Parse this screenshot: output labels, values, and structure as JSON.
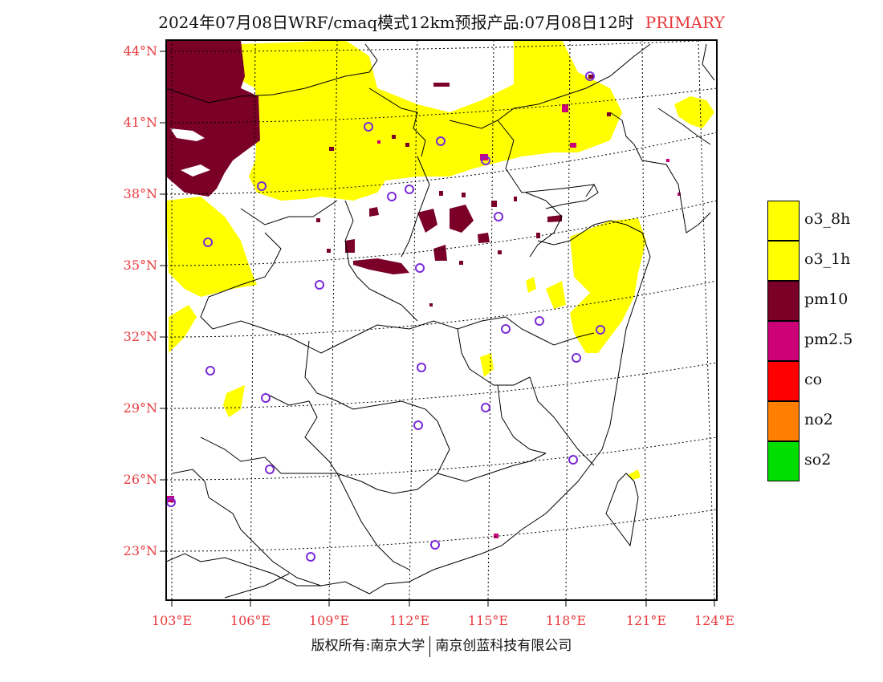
{
  "title": "2024年07月08日WRF/cmaq模式12km预报产品:07月08日12时",
  "title_tag": "PRIMARY",
  "lat_labels": [
    "44°N",
    "41°N",
    "38°N",
    "35°N",
    "32°N",
    "29°N",
    "26°N",
    "23°N"
  ],
  "lon_labels": [
    "103°E",
    "106°E",
    "109°E",
    "112°E",
    "115°E",
    "118°E",
    "121°E",
    "124°E"
  ],
  "legend": [
    {
      "label": "o3_8h",
      "color": "#ffff00"
    },
    {
      "label": "o3_1h",
      "color": "#ffff00"
    },
    {
      "label": "pm10",
      "color": "#7a0028"
    },
    {
      "label": "pm2.5",
      "color": "#cc0077"
    },
    {
      "label": "co",
      "color": "#ff0000"
    },
    {
      "label": "no2",
      "color": "#ff7f00"
    },
    {
      "label": "so2",
      "color": "#00dd00"
    }
  ],
  "footer": {
    "left": "版权所有:南京大学",
    "right": "南京创蓝科技有限公司"
  },
  "colors": {
    "o3": "#ffff00",
    "pm10": "#7a0028",
    "pm25": "#cc0077",
    "station": "#7a2ad8",
    "label": "#e8383b"
  }
}
